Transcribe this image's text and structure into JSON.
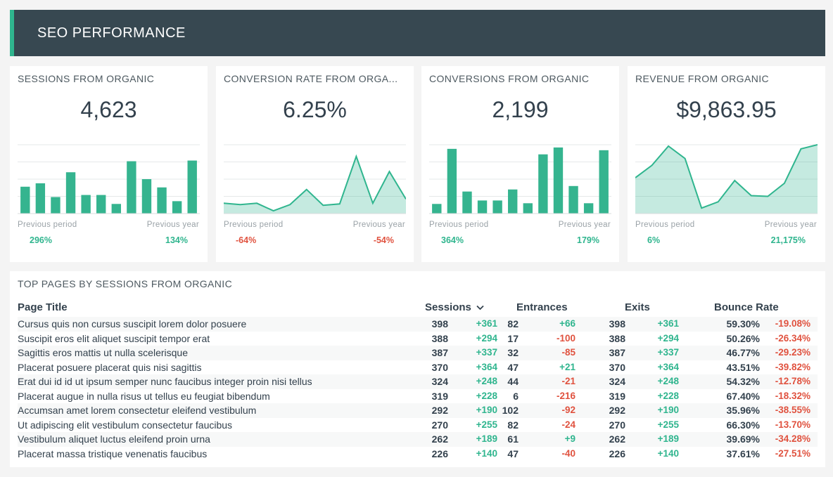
{
  "header": {
    "title": "SEO PERFORMANCE"
  },
  "colors": {
    "accent": "#2fb58e",
    "negative": "#e0523f",
    "header_bg": "#374851"
  },
  "cards": [
    {
      "title": "SESSIONS FROM ORGANIC",
      "value": "4,623",
      "prev_period_label": "Previous period",
      "prev_year_label": "Previous year",
      "prev_period_change": "296%",
      "prev_year_change": "134%",
      "prev_period_dir": "pos",
      "prev_year_dir": "pos"
    },
    {
      "title": "CONVERSION RATE FROM ORGA...",
      "value": "6.25%",
      "prev_period_label": "Previous period",
      "prev_year_label": "Previous year",
      "prev_period_change": "-64%",
      "prev_year_change": "-54%",
      "prev_period_dir": "neg",
      "prev_year_dir": "neg"
    },
    {
      "title": "CONVERSIONS FROM ORGANIC",
      "value": "2,199",
      "prev_period_label": "Previous period",
      "prev_year_label": "Previous year",
      "prev_period_change": "364%",
      "prev_year_change": "179%",
      "prev_period_dir": "pos",
      "prev_year_dir": "pos"
    },
    {
      "title": "REVENUE FROM ORGANIC",
      "value": "$9,863.95",
      "prev_period_label": "Previous period",
      "prev_year_label": "Previous year",
      "prev_period_change": "6%",
      "prev_year_change": "21,175%",
      "prev_period_dir": "pos",
      "prev_year_dir": "pos"
    }
  ],
  "chart_data": [
    {
      "type": "bar",
      "values": [
        39,
        44,
        24,
        60,
        27,
        27,
        14,
        76,
        50,
        38,
        18,
        77
      ],
      "ylim": [
        0,
        100
      ]
    },
    {
      "type": "area",
      "values": [
        15,
        13,
        15,
        4,
        13,
        35,
        12,
        14,
        83,
        15,
        61,
        21
      ],
      "ylim": [
        0,
        100
      ]
    },
    {
      "type": "bar",
      "values": [
        14,
        94,
        32,
        19,
        19,
        35,
        15,
        86,
        96,
        40,
        15,
        92
      ],
      "ylim": [
        0,
        100
      ]
    },
    {
      "type": "area",
      "values": [
        52,
        70,
        98,
        80,
        8,
        17,
        48,
        26,
        25,
        44,
        94,
        100
      ],
      "ylim": [
        0,
        100
      ]
    }
  ],
  "table": {
    "title": "TOP PAGES BY SESSIONS FROM ORGANIC",
    "headers": {
      "page_title": "Page Title",
      "sessions": "Sessions",
      "entrances": "Entrances",
      "exits": "Exits",
      "bounce_rate": "Bounce Rate"
    },
    "sort_icon": "chevron-down-icon",
    "rows": [
      {
        "title": "Cursus quis non cursus suscipit lorem dolor posuere",
        "sessions": "398",
        "sessions_delta": "+361",
        "sessions_dir": "pos",
        "entrances": "82",
        "entrances_delta": "+66",
        "entrances_dir": "pos",
        "exits": "398",
        "exits_delta": "+361",
        "exits_dir": "pos",
        "bounce": "59.30%",
        "bounce_delta": "-19.08%",
        "bounce_dir": "neg"
      },
      {
        "title": "Suscipit eros elit aliquet suscipit tempor erat",
        "sessions": "388",
        "sessions_delta": "+294",
        "sessions_dir": "pos",
        "entrances": "17",
        "entrances_delta": "-100",
        "entrances_dir": "neg",
        "exits": "388",
        "exits_delta": "+294",
        "exits_dir": "pos",
        "bounce": "50.26%",
        "bounce_delta": "-26.34%",
        "bounce_dir": "neg"
      },
      {
        "title": "Sagittis eros mattis ut nulla scelerisque",
        "sessions": "387",
        "sessions_delta": "+337",
        "sessions_dir": "pos",
        "entrances": "32",
        "entrances_delta": "-85",
        "entrances_dir": "neg",
        "exits": "387",
        "exits_delta": "+337",
        "exits_dir": "pos",
        "bounce": "46.77%",
        "bounce_delta": "-29.23%",
        "bounce_dir": "neg"
      },
      {
        "title": "Placerat posuere placerat quis nisi sagittis",
        "sessions": "370",
        "sessions_delta": "+364",
        "sessions_dir": "pos",
        "entrances": "47",
        "entrances_delta": "+21",
        "entrances_dir": "pos",
        "exits": "370",
        "exits_delta": "+364",
        "exits_dir": "pos",
        "bounce": "43.51%",
        "bounce_delta": "-39.82%",
        "bounce_dir": "neg"
      },
      {
        "title": "Erat dui id id ut ipsum semper nunc faucibus integer proin nisi tellus",
        "sessions": "324",
        "sessions_delta": "+248",
        "sessions_dir": "pos",
        "entrances": "44",
        "entrances_delta": "-21",
        "entrances_dir": "neg",
        "exits": "324",
        "exits_delta": "+248",
        "exits_dir": "pos",
        "bounce": "54.32%",
        "bounce_delta": "-12.78%",
        "bounce_dir": "neg"
      },
      {
        "title": "Placerat augue in nulla risus ut tellus eu feugiat bibendum",
        "sessions": "319",
        "sessions_delta": "+228",
        "sessions_dir": "pos",
        "entrances": "6",
        "entrances_delta": "-216",
        "entrances_dir": "neg",
        "exits": "319",
        "exits_delta": "+228",
        "exits_dir": "pos",
        "bounce": "67.40%",
        "bounce_delta": "-18.32%",
        "bounce_dir": "neg"
      },
      {
        "title": "Accumsan amet lorem consectetur eleifend vestibulum",
        "sessions": "292",
        "sessions_delta": "+190",
        "sessions_dir": "pos",
        "entrances": "102",
        "entrances_delta": "-92",
        "entrances_dir": "neg",
        "exits": "292",
        "exits_delta": "+190",
        "exits_dir": "pos",
        "bounce": "35.96%",
        "bounce_delta": "-38.55%",
        "bounce_dir": "neg"
      },
      {
        "title": "Ut adipiscing elit vestibulum consectetur faucibus",
        "sessions": "270",
        "sessions_delta": "+255",
        "sessions_dir": "pos",
        "entrances": "82",
        "entrances_delta": "-24",
        "entrances_dir": "neg",
        "exits": "270",
        "exits_delta": "+255",
        "exits_dir": "pos",
        "bounce": "66.30%",
        "bounce_delta": "-13.70%",
        "bounce_dir": "neg"
      },
      {
        "title": "Vestibulum aliquet luctus eleifend proin urna",
        "sessions": "262",
        "sessions_delta": "+189",
        "sessions_dir": "pos",
        "entrances": "61",
        "entrances_delta": "+9",
        "entrances_dir": "pos",
        "exits": "262",
        "exits_delta": "+189",
        "exits_dir": "pos",
        "bounce": "39.69%",
        "bounce_delta": "-34.28%",
        "bounce_dir": "neg"
      },
      {
        "title": "Placerat massa tristique venenatis faucibus",
        "sessions": "226",
        "sessions_delta": "+140",
        "sessions_dir": "pos",
        "entrances": "47",
        "entrances_delta": "-40",
        "entrances_dir": "neg",
        "exits": "226",
        "exits_delta": "+140",
        "exits_dir": "pos",
        "bounce": "37.61%",
        "bounce_delta": "-27.51%",
        "bounce_dir": "neg"
      }
    ]
  }
}
